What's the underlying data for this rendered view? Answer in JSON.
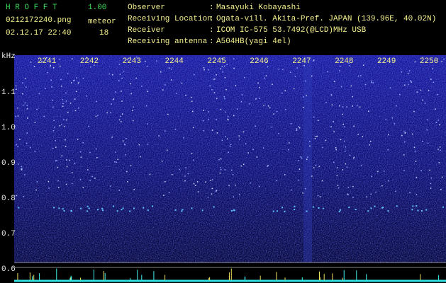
{
  "header": {
    "app": "H R O F F T",
    "version": "1.00",
    "file": "0212172240.png",
    "datetime": "02.12.17 22:40",
    "count_label": "meteor",
    "count": "18"
  },
  "separator": ":",
  "info": [
    {
      "label": "Observer",
      "value": "Masayuki Kobayashi"
    },
    {
      "label": "Receiving Location",
      "value": "Ogata-vill. Akita-Pref. JAPAN (139.96E, 40.02N)"
    },
    {
      "label": "Receiver",
      "value": "ICOM IC-575 53.7492(@LCD)MHz USB"
    },
    {
      "label": "Receiving antenna",
      "value": "A504HB(yagi 4el)"
    }
  ],
  "time_axis": {
    "labels": [
      "2241",
      "2242",
      "2243",
      "2244",
      "2245",
      "2246",
      "2247",
      "2248",
      "2249",
      "2250"
    ]
  },
  "freq_axis": {
    "unit": "kHz",
    "labels": [
      "1.1",
      "1.0",
      "0.9",
      "0.8",
      "0.7",
      "0.6"
    ]
  }
}
